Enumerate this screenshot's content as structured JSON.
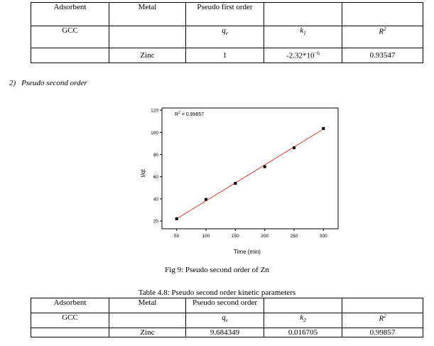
{
  "table1": {
    "header": [
      "Adsorbent",
      "Metal",
      "Pseudo first order",
      "",
      ""
    ],
    "params": [
      "GCC",
      "",
      "q",
      "k",
      "R"
    ],
    "param_sub": [
      "",
      "",
      "e",
      "1",
      ""
    ],
    "param_sup": [
      "",
      "",
      "",
      "",
      "2"
    ],
    "row": [
      "",
      "Zinc",
      "1",
      "-2.32*10",
      "0.93547"
    ],
    "k_exp": "−6"
  },
  "section": {
    "number": "2)",
    "title": "Pseudo second order"
  },
  "chart_data": {
    "type": "scatter",
    "annotation": "R",
    "annotation_sup": "2",
    "annotation_value": " = 0.99857",
    "xlabel": "Time (min)",
    "ylabel": "t/qt",
    "xlim": [
      25,
      325
    ],
    "ylim": [
      13,
      122
    ],
    "xticks": [
      50,
      100,
      150,
      200,
      250,
      300
    ],
    "yticks": [
      20,
      40,
      60,
      80,
      100,
      120
    ],
    "points": [
      {
        "x": 50,
        "y": 22
      },
      {
        "x": 100,
        "y": 39.5
      },
      {
        "x": 150,
        "y": 54
      },
      {
        "x": 200,
        "y": 69
      },
      {
        "x": 250,
        "y": 86
      },
      {
        "x": 300,
        "y": 103.5
      }
    ],
    "fit_line": [
      {
        "x": 50,
        "y": 22
      },
      {
        "x": 300,
        "y": 103
      }
    ],
    "colors": {
      "fit": "#e8332a",
      "marker": "#000000"
    }
  },
  "fig_caption": "Fig 9: Pseudo second order of Zn",
  "table_caption": "Table 4.8: Pseudo second order kinetic parameters",
  "table2": {
    "header": [
      "Adsorbent",
      "Metal",
      "Pseudo second order",
      "",
      ""
    ],
    "params": [
      "GCC",
      "",
      "q",
      "k",
      "R"
    ],
    "param_sub": [
      "",
      "",
      "e",
      "2",
      ""
    ],
    "param_sup": [
      "",
      "",
      "",
      "",
      "2"
    ],
    "row": [
      "",
      "Zinc",
      "9.684349",
      "0.016705",
      "0.99857"
    ]
  }
}
